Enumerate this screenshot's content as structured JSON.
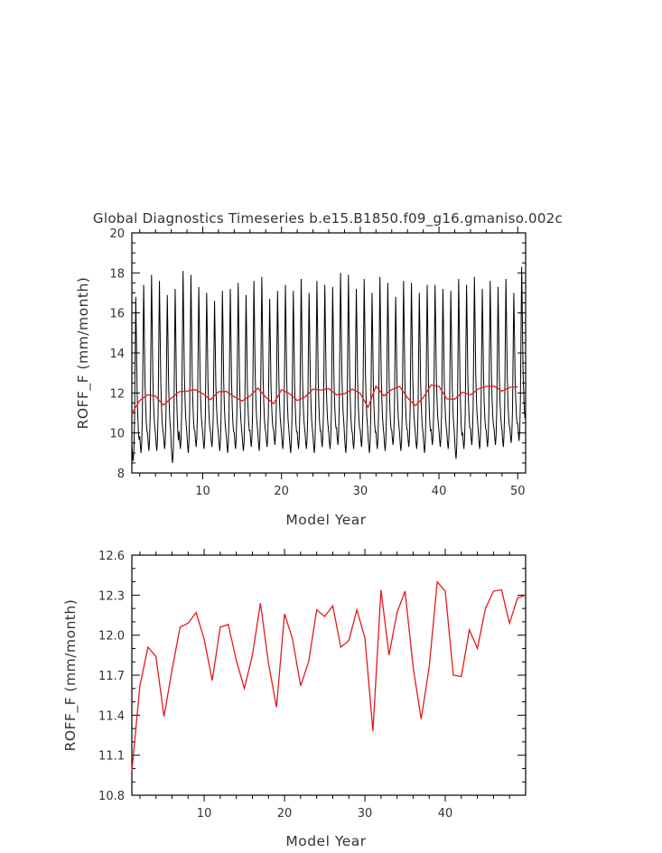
{
  "chart_data": [
    {
      "type": "line",
      "title": "Global Diagnostics Timeseries b.e15.B1850.f09_g16.gmaniso.002c",
      "xlabel": "Model Year",
      "ylabel": "ROFF_F (mm/month)",
      "xlim": [
        1,
        51
      ],
      "ylim": [
        8,
        20
      ],
      "xticks": [
        10,
        20,
        30,
        40,
        50
      ],
      "yticks": [
        8,
        10,
        12,
        14,
        16,
        18,
        20
      ],
      "colors": {
        "monthly": "#000000",
        "annual": "#e41a1c"
      },
      "series": [
        {
          "name": "monthly",
          "color": "#000000",
          "cycle": {
            "years": 50,
            "months_per_year": 12,
            "annual_max": [
              16.8,
              17.4,
              17.9,
              17.6,
              16.9,
              17.2,
              18.1,
              17.9,
              17.3,
              17.0,
              16.6,
              17.1,
              17.2,
              17.5,
              16.9,
              17.6,
              17.8,
              16.7,
              17.1,
              17.4,
              17.1,
              17.7,
              17.0,
              17.6,
              17.4,
              17.3,
              18.0,
              17.9,
              17.2,
              17.7,
              17.0,
              17.8,
              17.5,
              16.8,
              17.6,
              17.5,
              17.0,
              17.4,
              17.4,
              17.2,
              17.1,
              17.7,
              17.4,
              17.8,
              17.2,
              17.6,
              17.3,
              17.7,
              17.0,
              18.3
            ],
            "annual_min": [
              8.6,
              9.0,
              9.1,
              9.1,
              9.2,
              8.5,
              9.2,
              9.0,
              9.3,
              9.2,
              9.3,
              9.1,
              9.0,
              9.2,
              9.1,
              9.3,
              9.1,
              9.3,
              9.4,
              9.2,
              9.0,
              9.2,
              9.2,
              9.0,
              9.3,
              9.2,
              9.4,
              9.0,
              9.2,
              9.3,
              9.0,
              9.2,
              9.1,
              9.4,
              9.1,
              9.3,
              9.2,
              9.0,
              9.4,
              9.3,
              9.2,
              8.7,
              9.2,
              9.4,
              9.2,
              9.3,
              9.4,
              9.3,
              9.5,
              9.6
            ]
          }
        },
        {
          "name": "annual",
          "color": "#e41a1c",
          "x": [
            1,
            2,
            3,
            4,
            5,
            6,
            7,
            8,
            9,
            10,
            11,
            12,
            13,
            14,
            15,
            16,
            17,
            18,
            19,
            20,
            21,
            22,
            23,
            24,
            25,
            26,
            27,
            28,
            29,
            30,
            31,
            32,
            33,
            34,
            35,
            36,
            37,
            38,
            39,
            40,
            41,
            42,
            43,
            44,
            45,
            46,
            47,
            48,
            49,
            50
          ],
          "values": [
            10.98,
            11.62,
            11.91,
            11.84,
            11.39,
            11.74,
            12.06,
            12.09,
            12.17,
            11.97,
            11.66,
            12.06,
            12.08,
            11.81,
            11.6,
            11.85,
            12.24,
            11.79,
            11.46,
            12.16,
            11.97,
            11.62,
            11.8,
            12.19,
            12.14,
            12.22,
            11.91,
            11.96,
            12.19,
            11.98,
            11.28,
            12.34,
            11.85,
            12.17,
            12.33,
            11.76,
            11.37,
            11.76,
            12.4,
            12.33,
            11.7,
            11.69,
            12.04,
            11.9,
            12.2,
            12.33,
            12.34,
            12.09,
            12.28,
            12.3
          ]
        }
      ]
    },
    {
      "type": "line",
      "title": "",
      "xlabel": "Model Year",
      "ylabel": "ROFF_F (mm/month)",
      "xlim": [
        1,
        50
      ],
      "ylim": [
        10.8,
        12.6
      ],
      "xticks": [
        10,
        20,
        30,
        40
      ],
      "yticks": [
        10.8,
        11.1,
        11.4,
        11.7,
        12.0,
        12.3,
        12.6
      ],
      "series": [
        {
          "name": "annual",
          "color": "#e41a1c",
          "x": [
            1,
            2,
            3,
            4,
            5,
            6,
            7,
            8,
            9,
            10,
            11,
            12,
            13,
            14,
            15,
            16,
            17,
            18,
            19,
            20,
            21,
            22,
            23,
            24,
            25,
            26,
            27,
            28,
            29,
            30,
            31,
            32,
            33,
            34,
            35,
            36,
            37,
            38,
            39,
            40,
            41,
            42,
            43,
            44,
            45,
            46,
            47,
            48,
            49,
            50
          ],
          "values": [
            10.98,
            11.62,
            11.91,
            11.84,
            11.39,
            11.74,
            12.06,
            12.09,
            12.17,
            11.97,
            11.66,
            12.06,
            12.08,
            11.81,
            11.6,
            11.85,
            12.24,
            11.79,
            11.46,
            12.16,
            11.97,
            11.62,
            11.8,
            12.19,
            12.14,
            12.22,
            11.91,
            11.96,
            12.19,
            11.98,
            11.28,
            12.34,
            11.85,
            12.17,
            12.33,
            11.76,
            11.37,
            11.76,
            12.4,
            12.33,
            11.7,
            11.69,
            12.04,
            11.9,
            12.2,
            12.33,
            12.34,
            12.09,
            12.28,
            12.3
          ]
        }
      ]
    }
  ]
}
